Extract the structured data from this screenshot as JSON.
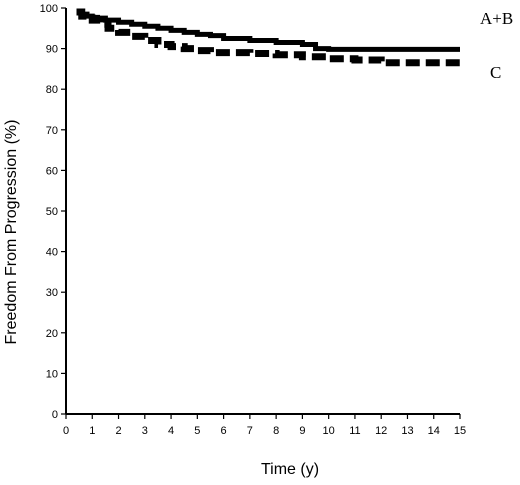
{
  "chart_data": {
    "type": "line",
    "title": "",
    "xlabel": "Time (y)",
    "ylabel": "Freedom From Progression (%)",
    "xlim": [
      0,
      15
    ],
    "ylim": [
      0,
      100
    ],
    "x_ticks": [
      0,
      1,
      2,
      3,
      4,
      5,
      6,
      7,
      8,
      9,
      10,
      11,
      12,
      13,
      14,
      15
    ],
    "y_ticks": [
      0,
      10,
      20,
      30,
      40,
      50,
      60,
      70,
      80,
      90,
      100
    ],
    "grid": false,
    "series": [
      {
        "name": "A+B",
        "style": "solid",
        "color": "#000000",
        "x": [
          0.4,
          0.6,
          0.8,
          1.0,
          1.2,
          1.5,
          2.0,
          2.5,
          3.0,
          3.5,
          4.0,
          4.5,
          5.0,
          5.5,
          6.0,
          7.0,
          8.0,
          9.0,
          9.5,
          10.0,
          11.0,
          12.0,
          13.0,
          14.0,
          15.0
        ],
        "values": [
          99,
          98.5,
          98,
          97.7,
          97.5,
          97,
          96.5,
          96,
          95.5,
          95,
          94.5,
          94,
          93.5,
          93.2,
          92.5,
          92,
          91.5,
          91,
          90,
          89.8,
          89.8,
          89.8,
          89.8,
          89.8,
          89.8
        ]
      },
      {
        "name": "C",
        "style": "dashed",
        "color": "#000000",
        "x": [
          0.4,
          0.6,
          0.8,
          1.0,
          1.3,
          1.6,
          2.0,
          2.5,
          3.0,
          3.5,
          4.0,
          4.5,
          5.0,
          5.5,
          6.0,
          7.0,
          8.0,
          9.0,
          10.0,
          11.0,
          12.0,
          13.0,
          14.0,
          15.0
        ],
        "values": [
          99,
          98,
          97.5,
          97,
          96,
          95,
          94,
          93,
          92,
          91,
          90.5,
          90,
          89.5,
          89,
          89,
          88.8,
          88.5,
          88,
          87.5,
          87.2,
          86.5,
          86.5,
          86.5,
          86.5
        ]
      }
    ]
  }
}
